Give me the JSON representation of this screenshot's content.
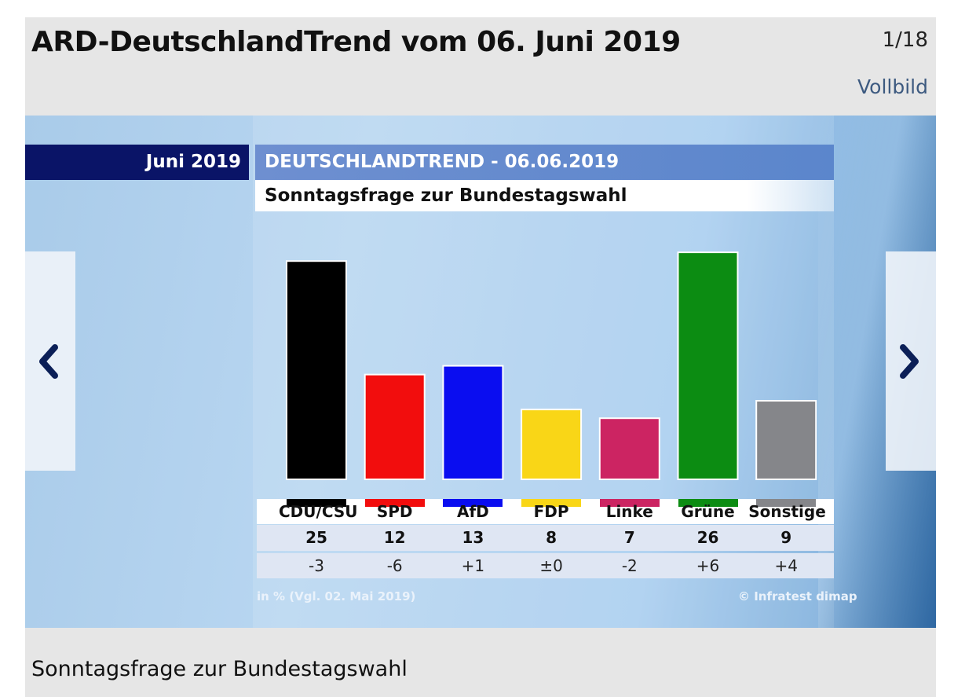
{
  "header": {
    "title": "ARD-DeutschlandTrend vom 06. Juni 2019",
    "counter": "1/18",
    "fullscreen_label": "Vollbild"
  },
  "slide": {
    "date_label": "Juni 2019",
    "trend_label": "DEUTSCHLANDTREND - 06.06.2019",
    "subtitle": "Sonntagsfrage zur Bundestagswahl",
    "footnote": "in % (Vgl. 02. Mai 2019)",
    "source": "© Infratest dimap"
  },
  "chart_data": {
    "type": "bar",
    "title": "Sonntagsfrage zur Bundestagswahl",
    "ylabel": "in %",
    "ylim": [
      0,
      27
    ],
    "categories": [
      "CDU/CSU",
      "SPD",
      "AfD",
      "FDP",
      "Linke",
      "Grüne",
      "Sonstige"
    ],
    "values": [
      25,
      12,
      13,
      8,
      7,
      26,
      9
    ],
    "value_labels": [
      "25",
      "12",
      "13",
      "8",
      "7",
      "26",
      "9"
    ],
    "changes": [
      "-3",
      "-6",
      "+1",
      "±0",
      "-2",
      "+6",
      "+4"
    ],
    "colors": [
      "#000000",
      "#f20d0d",
      "#0a0df0",
      "#f9d617",
      "#cc2462",
      "#0c8c12",
      "#85868a"
    ]
  },
  "nav": {
    "prev_icon": "chevron-left-icon",
    "next_icon": "chevron-right-icon"
  },
  "caption": "Sonntagsfrage zur Bundestagswahl"
}
